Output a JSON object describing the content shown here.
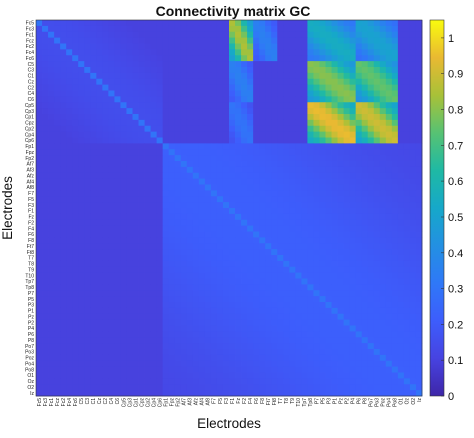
{
  "chart_data": {
    "type": "heatmap",
    "title": "Connectivity matrix GC",
    "xlabel": "Electrodes",
    "ylabel": "Electrodes",
    "electrodes": [
      "Fc5",
      "Fc3",
      "Fc1",
      "Fcz",
      "Fc2",
      "Fc4",
      "Fc6",
      "C5",
      "C3",
      "C1",
      "Cz",
      "C2",
      "C4",
      "C6",
      "Cp5",
      "Cp3",
      "Cp1",
      "Cpz",
      "Cp2",
      "Cp4",
      "Cp6",
      "Fp1",
      "Fpz",
      "Fp2",
      "Af7",
      "Af3",
      "Afz",
      "Af4",
      "Af8",
      "F7",
      "F5",
      "F3",
      "F1",
      "Fz",
      "F2",
      "F4",
      "F6",
      "F8",
      "Ft7",
      "Ft8",
      "T7",
      "T8",
      "T9",
      "T10",
      "Tp7",
      "Tp8",
      "P7",
      "P5",
      "P3",
      "P1",
      "Pz",
      "P2",
      "P4",
      "P6",
      "P8",
      "Po7",
      "Po3",
      "Poz",
      "Po4",
      "Po8",
      "O1",
      "Oz",
      "O2",
      "Iz"
    ],
    "clim": [
      0,
      1.05
    ],
    "colorbar_ticks": [
      0,
      0.1,
      0.2,
      0.3,
      0.4,
      0.5,
      0.6,
      0.7,
      0.8,
      0.9,
      1
    ],
    "colormap": "parula",
    "grid": false,
    "blocks": [
      {
        "rows": [
          "Fc5",
          "Fc6"
        ],
        "cols": [
          "F1",
          "F4"
        ],
        "value": 0.85
      },
      {
        "rows": [
          "Fc5",
          "Fc6"
        ],
        "cols": [
          "F6",
          "Ft8"
        ],
        "value": 0.35
      },
      {
        "rows": [
          "Fc5",
          "Fc6"
        ],
        "cols": [
          "Tp8",
          "P4"
        ],
        "value": 0.55
      },
      {
        "rows": [
          "Fc5",
          "Fc6"
        ],
        "cols": [
          "P6",
          "Po8"
        ],
        "value": 0.5
      },
      {
        "rows": [
          "C5",
          "C6"
        ],
        "cols": [
          "F1",
          "F4"
        ],
        "value": 0.35
      },
      {
        "rows": [
          "C5",
          "C6"
        ],
        "cols": [
          "Tp8",
          "P4"
        ],
        "value": 0.8
      },
      {
        "rows": [
          "C5",
          "C6"
        ],
        "cols": [
          "P6",
          "Po8"
        ],
        "value": 0.75
      },
      {
        "rows": [
          "Cp5",
          "Cp6"
        ],
        "cols": [
          "F1",
          "F4"
        ],
        "value": 0.3
      },
      {
        "rows": [
          "Cp5",
          "Cp6"
        ],
        "cols": [
          "Tp8",
          "P4"
        ],
        "value": 0.95
      },
      {
        "rows": [
          "Cp5",
          "Cp6"
        ],
        "cols": [
          "P6",
          "Po8"
        ],
        "value": 0.9
      },
      {
        "rows": [
          "Fp1",
          "Iz"
        ],
        "cols": [
          "Fp1",
          "Iz"
        ],
        "value": 0.22
      },
      {
        "rows": [
          "Fc5",
          "Cp6"
        ],
        "cols": [
          "Fc5",
          "Cp6"
        ],
        "value": 0.15
      }
    ],
    "baseline_value": 0.1,
    "diagonal_value": 0.3
  }
}
